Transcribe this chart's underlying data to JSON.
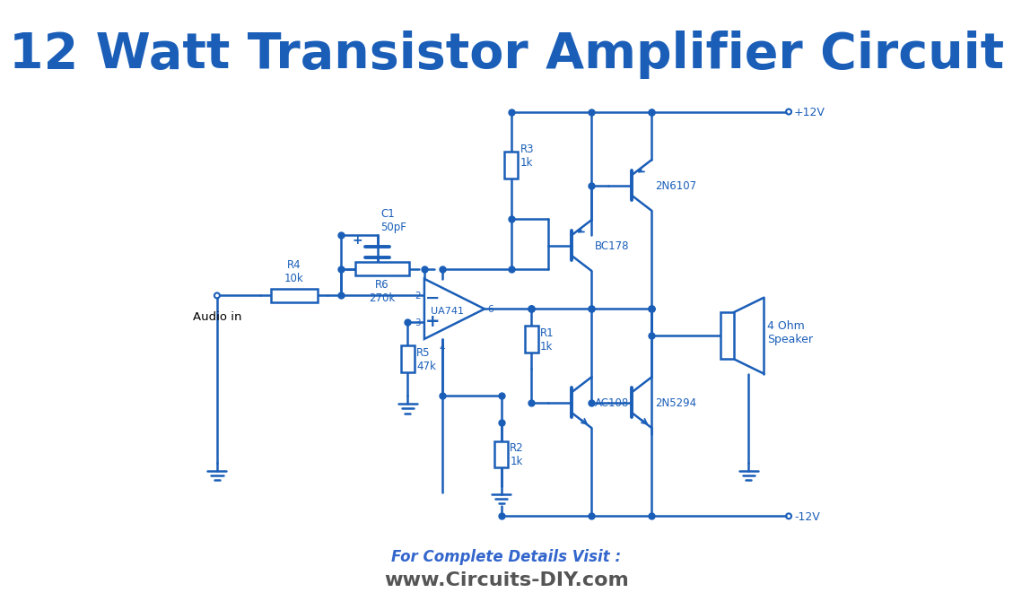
{
  "title": "12 Watt Transistor Amplifier Circuit",
  "title_color": "#1a5eb8",
  "title_fontsize": 40,
  "circuit_color": "#1a5eb8",
  "footer_line1": "For Complete Details Visit :",
  "footer_line2": "www.Circuits-DIY.com",
  "footer_color1": "#3366CC",
  "footer_color2": "#555555",
  "bg_color": "#FFFFFF"
}
